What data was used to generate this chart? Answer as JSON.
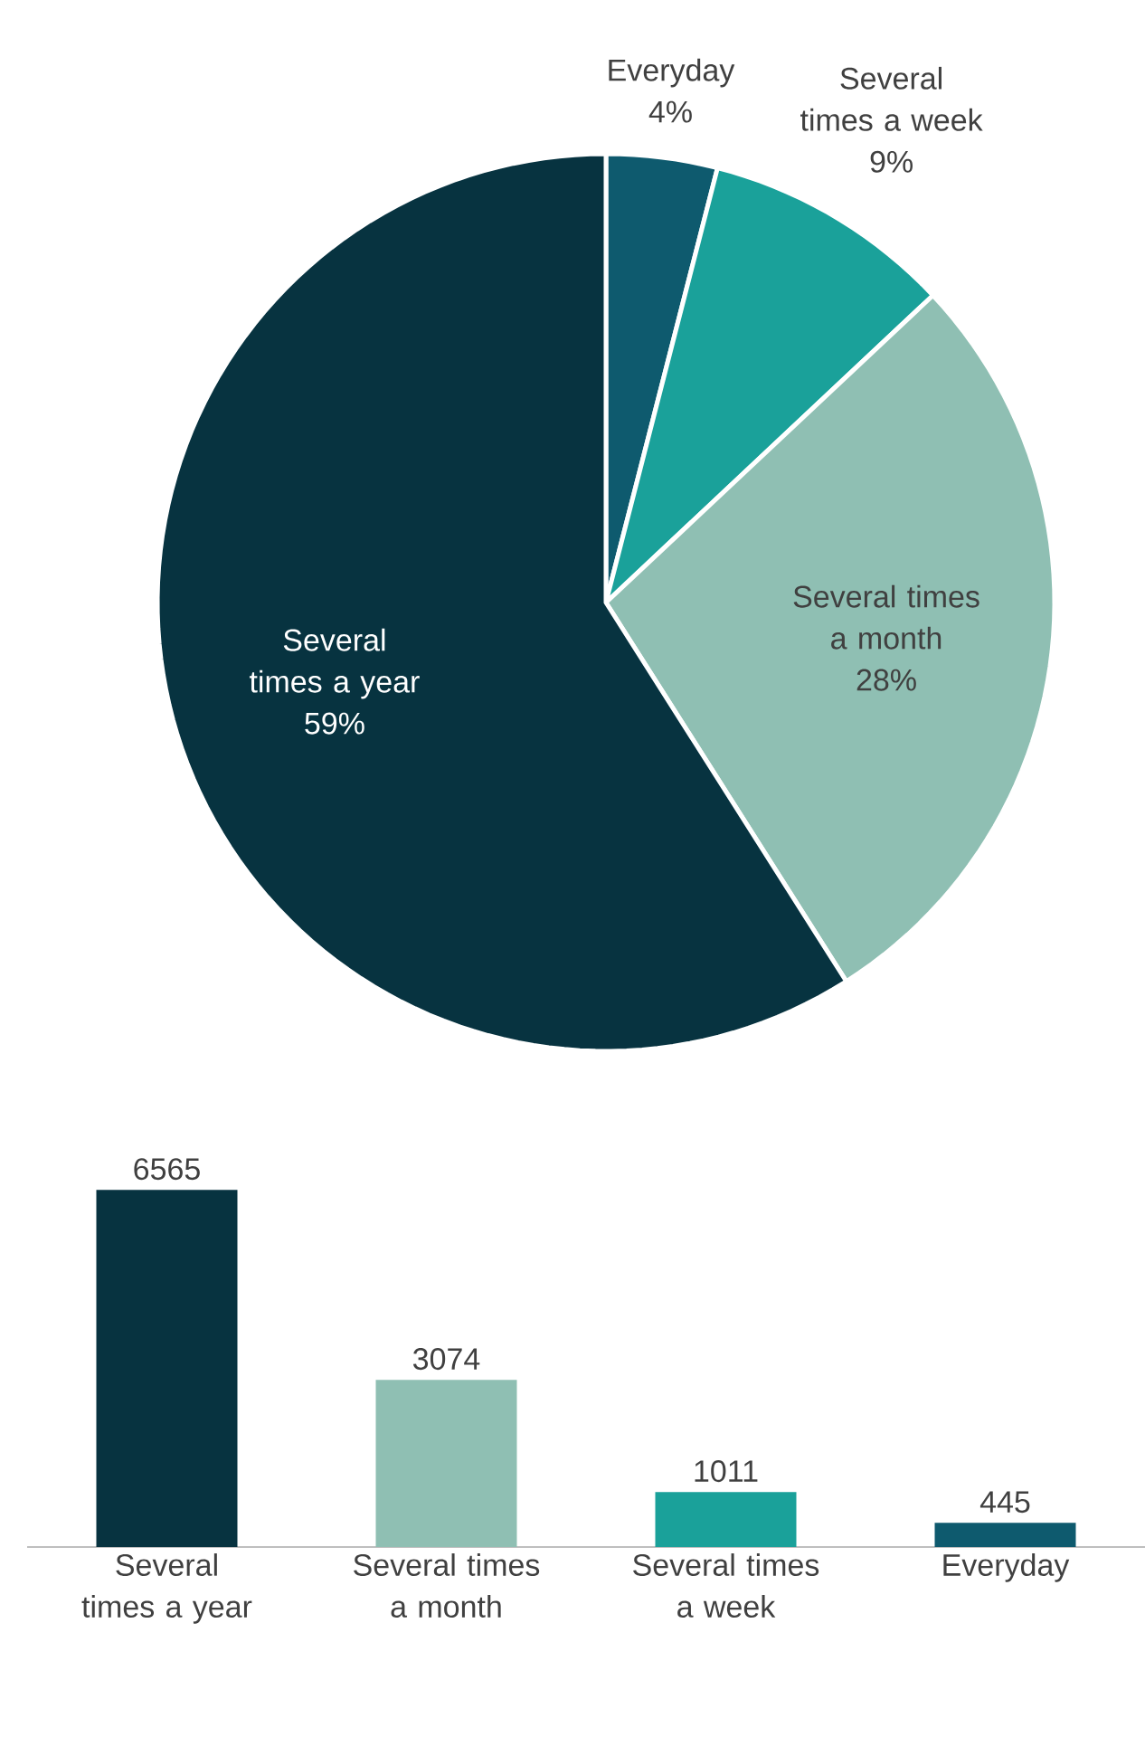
{
  "chart_data": [
    {
      "type": "pie",
      "categories": [
        "Everyday",
        "Several times a week",
        "Several times a month",
        "Several times a year"
      ],
      "values": [
        4,
        9,
        28,
        59
      ],
      "colors": [
        "#0e5a6e",
        "#1aa19a",
        "#8fbfb3",
        "#073340"
      ],
      "value_labels": [
        "4%",
        "9%",
        "28%",
        "59%"
      ]
    },
    {
      "type": "bar",
      "categories": [
        "Several times a year",
        "Several times a month",
        "Several times a week",
        "Everyday"
      ],
      "values": [
        6565,
        3074,
        1011,
        445
      ],
      "colors": [
        "#073340",
        "#8fbfb3",
        "#1aa19a",
        "#0e5a6e"
      ],
      "data_labels": true
    }
  ]
}
